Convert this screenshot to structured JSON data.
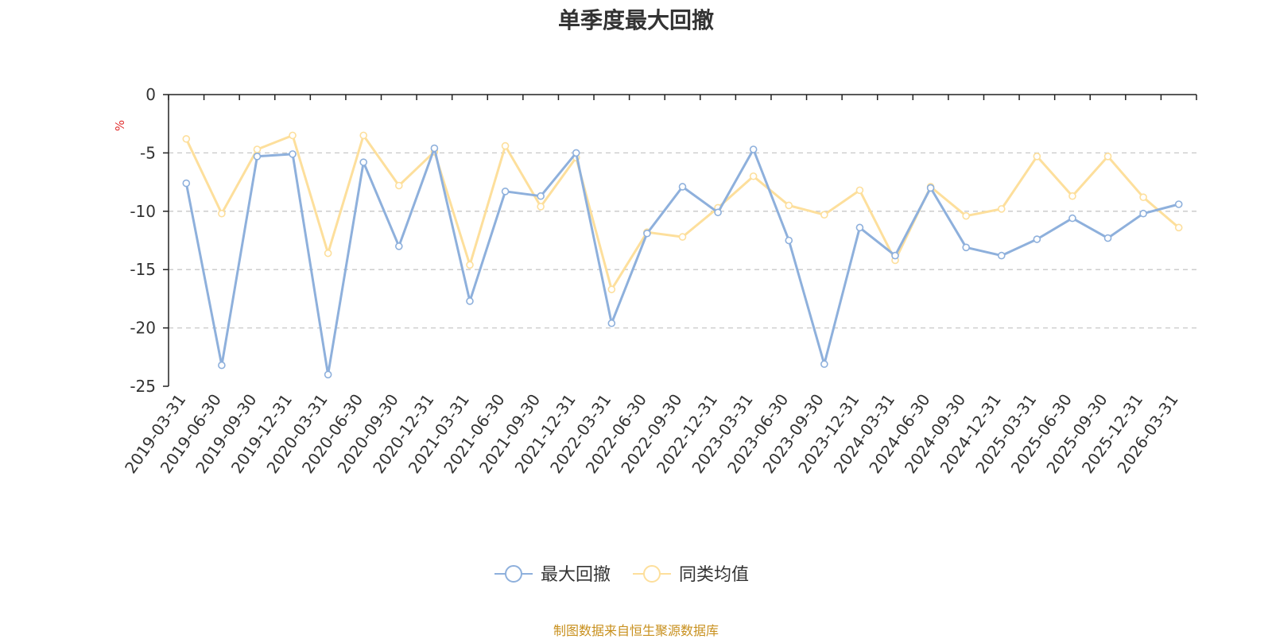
{
  "colors": {
    "series_1": "#8eb0dc",
    "series_2": "#fddf9c",
    "unit": "#e03030",
    "source": "#c8901e",
    "grid": "#c8c8c8",
    "axis": "#222222"
  },
  "chart_data": {
    "type": "line",
    "title": "单季度最大回撤",
    "ylabel": "%",
    "xlabel": "",
    "ylim": [
      -25,
      0
    ],
    "yticks": [
      0,
      -5,
      -10,
      -15,
      -20,
      -25
    ],
    "grid": true,
    "legend_position": "bottom-center",
    "x": [
      "2019-03-31",
      "2019-06-30",
      "2019-09-30",
      "2019-12-31",
      "2020-03-31",
      "2020-06-30",
      "2020-09-30",
      "2020-12-31",
      "2021-03-31",
      "2021-06-30",
      "2021-09-30",
      "2021-12-31",
      "2022-03-31",
      "2022-06-30",
      "2022-09-30",
      "2022-12-31",
      "2023-03-31",
      "2023-06-30",
      "2023-09-30",
      "2023-12-31",
      "2024-03-31",
      "2024-06-30",
      "2024-09-30",
      "2024-12-31",
      "2025-03-31",
      "2025-06-30",
      "2025-09-30",
      "2025-12-31",
      "2026-03-31"
    ],
    "series": [
      {
        "name": "最大回撤",
        "values": [
          -7.6,
          -23.2,
          -5.3,
          -5.1,
          -24.0,
          -5.8,
          -13.0,
          -4.6,
          -17.7,
          -8.3,
          -8.7,
          -5.0,
          -19.6,
          -11.9,
          -7.9,
          -10.1,
          -4.7,
          -12.5,
          -23.1,
          -11.4,
          -13.8,
          -8.0,
          -13.1,
          -13.8,
          -12.4,
          -10.6,
          -12.3,
          -10.2,
          -9.4
        ]
      },
      {
        "name": "同类均值",
        "values": [
          -3.8,
          -10.2,
          -4.7,
          -3.5,
          -13.6,
          -3.5,
          -7.8,
          -4.9,
          -14.6,
          -4.4,
          -9.6,
          -5.4,
          -16.7,
          -11.8,
          -12.2,
          -9.7,
          -7.0,
          -9.5,
          -10.3,
          -8.2,
          -14.2,
          -7.9,
          -10.4,
          -9.8,
          -5.3,
          -8.7,
          -5.3,
          -8.8,
          -11.4
        ]
      }
    ]
  },
  "source_note": "制图数据来自恒生聚源数据库"
}
